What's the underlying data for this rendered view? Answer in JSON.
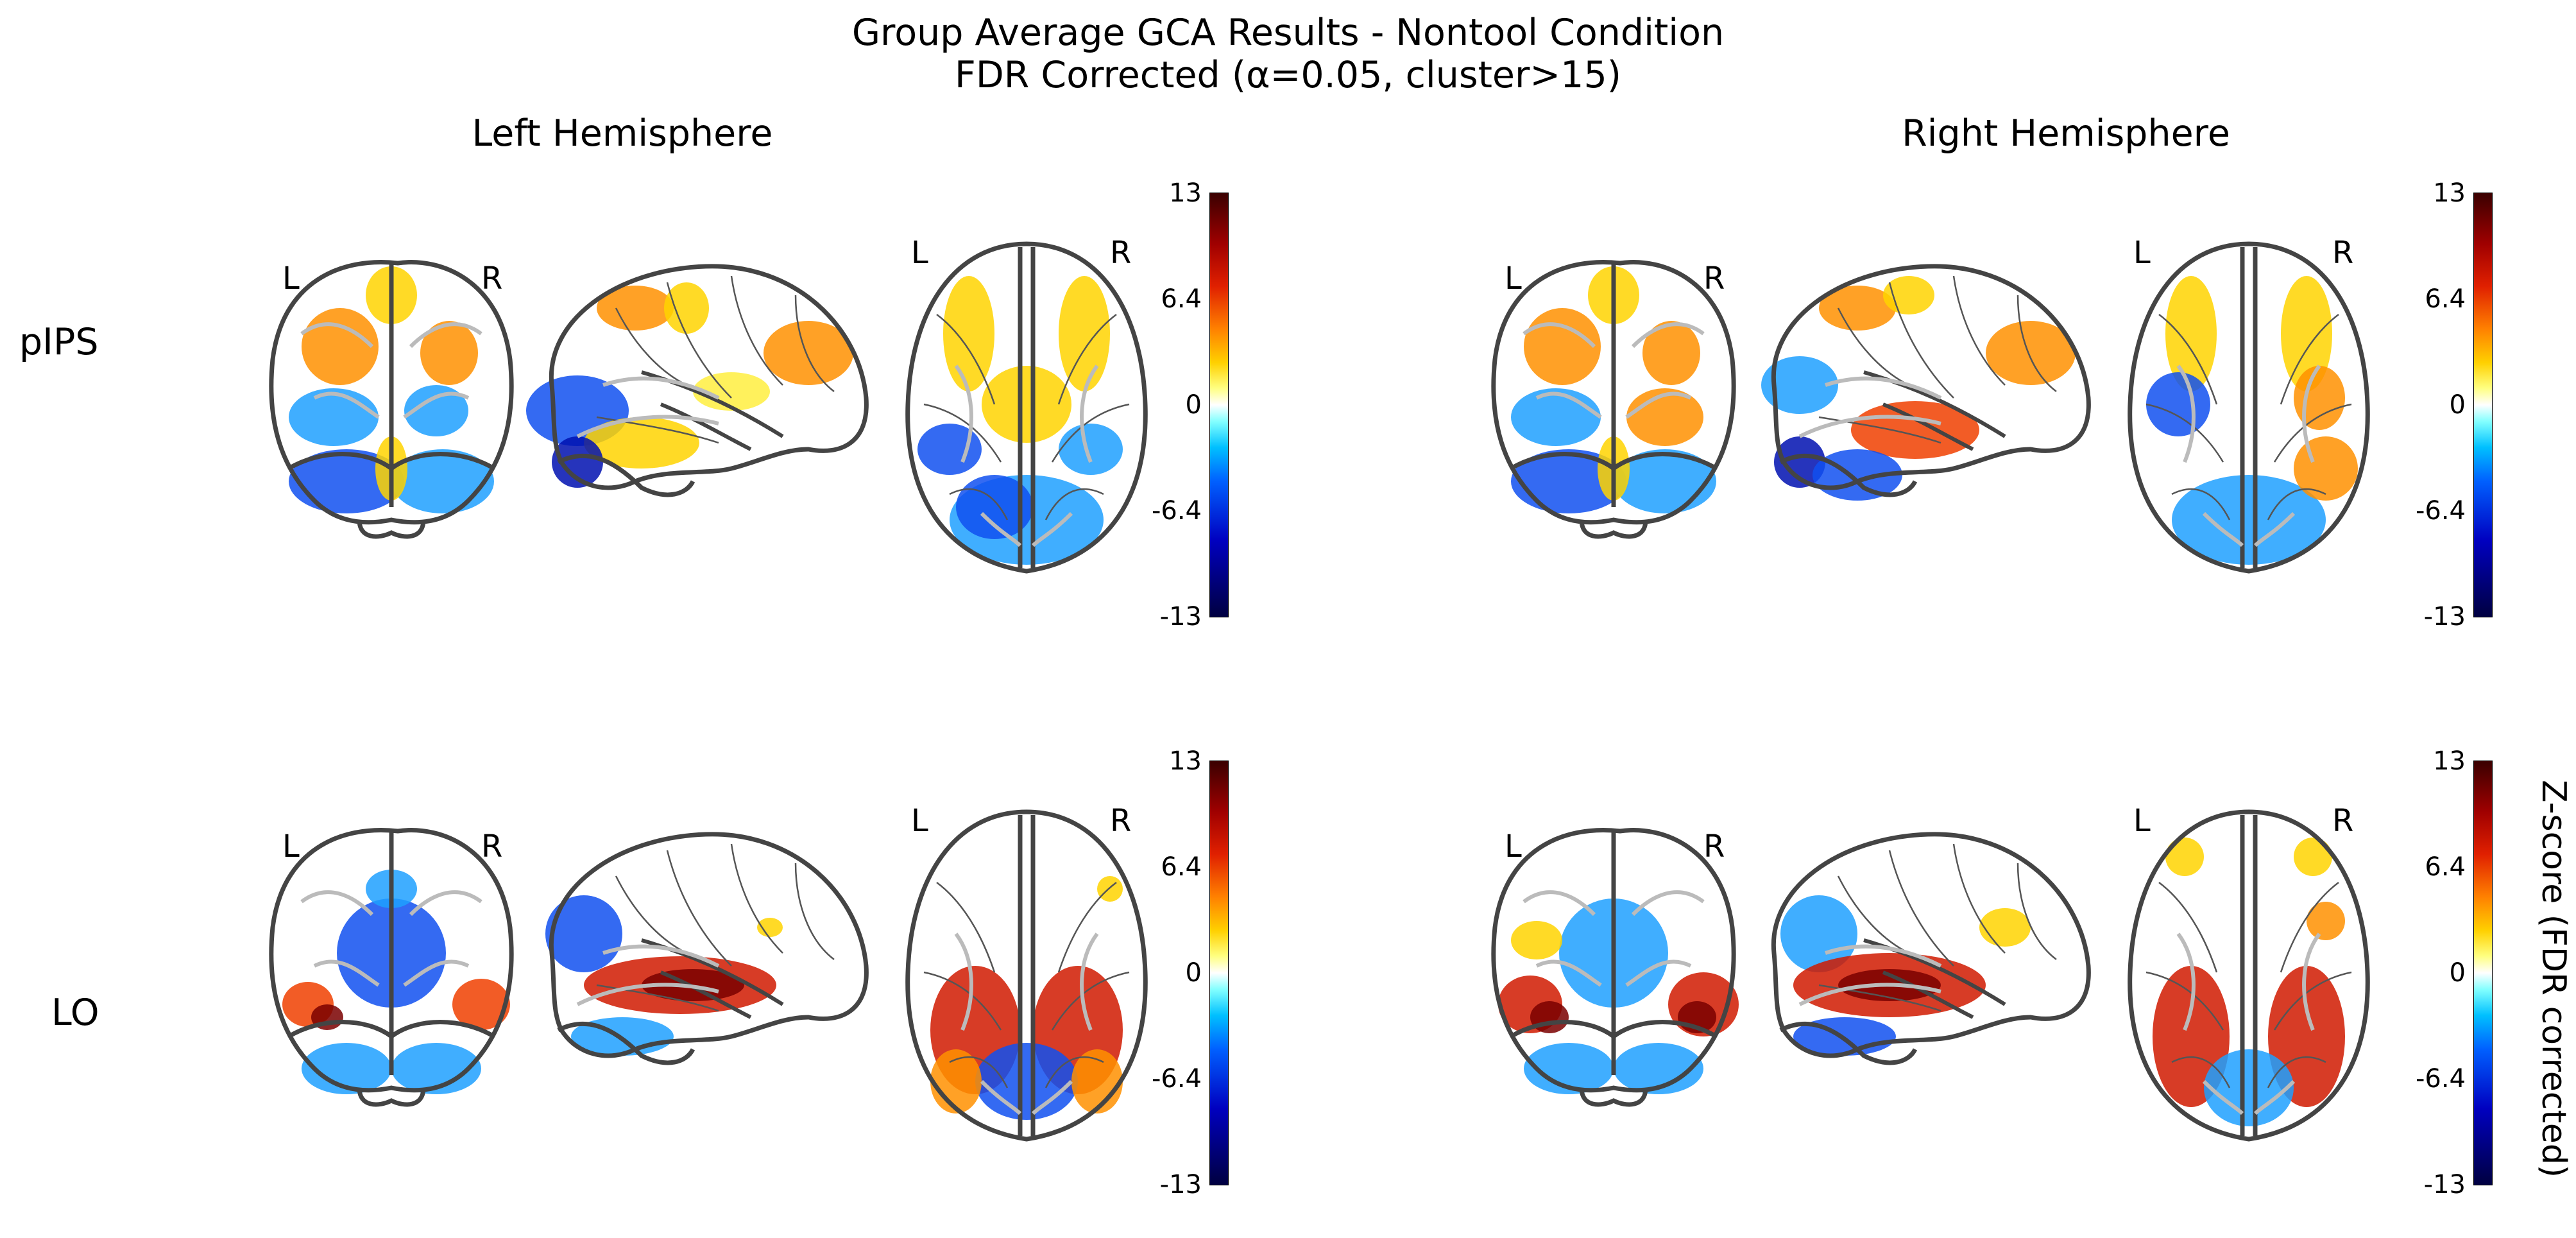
{
  "title": {
    "line1": "Group Average GCA Results - Nontool Condition",
    "line2": "FDR Corrected (α=0.05, cluster>15)"
  },
  "columns": {
    "left": "Left Hemisphere",
    "right": "Right Hemisphere"
  },
  "rows": {
    "top": "pIPS",
    "bottom": "LO"
  },
  "orientation": {
    "left": "L",
    "right": "R"
  },
  "colorbar": {
    "ticks": [
      "13",
      "6.4",
      "0",
      "-6.4",
      "-13"
    ],
    "label": "Z-score (FDR corrected)",
    "colors": [
      "#3a0000",
      "#e02000",
      "#ffd000",
      "#ffffff",
      "#00c0ff",
      "#0000c0",
      "#000040"
    ]
  }
}
